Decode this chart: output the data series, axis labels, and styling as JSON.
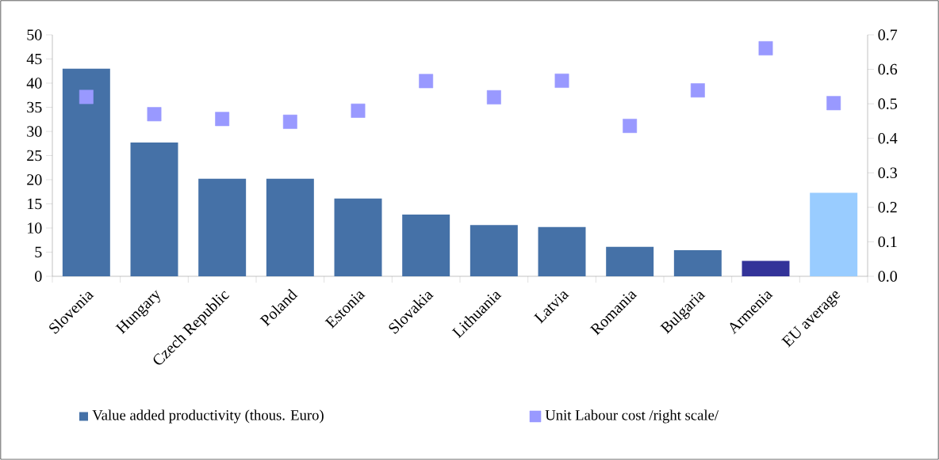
{
  "chart_data": {
    "type": "bar",
    "categories": [
      "Slovenia",
      "Hungary",
      "Czech Republic",
      "Poland",
      "Estonia",
      "Slovakia",
      "Lithuania",
      "Latvia",
      "Romania",
      "Bulgaria",
      "Armenia",
      "EU average"
    ],
    "series": [
      {
        "name": "Value added productivity (thous. Euro)",
        "color": "#4571a7",
        "colors": [
          "#4571a7",
          "#4571a7",
          "#4571a7",
          "#4571a7",
          "#4571a7",
          "#4571a7",
          "#4571a7",
          "#4571a7",
          "#4571a7",
          "#4571a7",
          "#333399",
          "#99ccff"
        ],
        "values": [
          43.0,
          27.7,
          20.2,
          20.2,
          16.1,
          12.8,
          10.6,
          10.2,
          6.1,
          5.4,
          3.2,
          17.3
        ]
      },
      {
        "name": "Unit Labour cost /right scale/",
        "type": "scatter",
        "axis": "y2",
        "color": "#9999ff",
        "values": [
          0.52,
          0.47,
          0.456,
          0.448,
          0.48,
          0.566,
          0.519,
          0.567,
          0.436,
          0.539,
          0.661,
          0.502
        ]
      }
    ],
    "ylim": [
      0,
      50
    ],
    "yticks": [
      0,
      5,
      10,
      15,
      20,
      25,
      30,
      35,
      40,
      45,
      50
    ],
    "y2lim": [
      0,
      0.7
    ],
    "y2ticks": [
      {
        "value": 0,
        "label": "0.0"
      },
      0.1,
      0.2,
      0.3,
      0.4,
      0.5,
      0.6,
      0.7
    ],
    "marker": "square",
    "legend": "bottom"
  }
}
